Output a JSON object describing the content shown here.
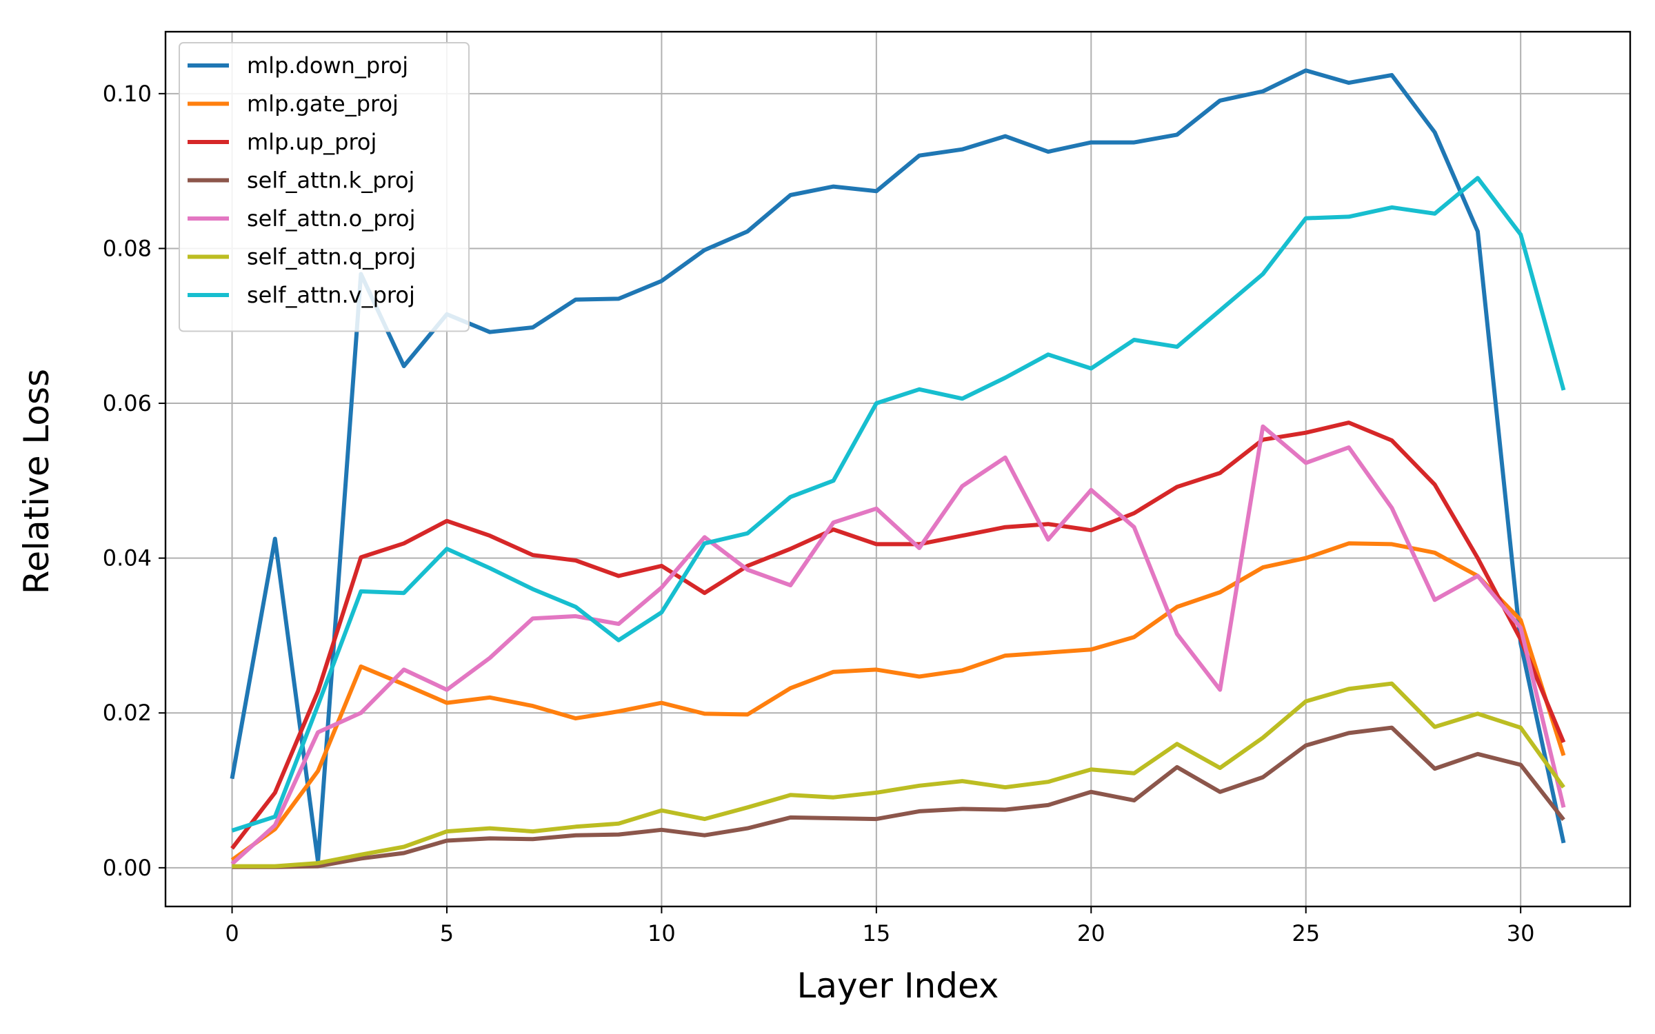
{
  "chart_data": {
    "type": "line",
    "title": "",
    "xlabel": "Layer Index",
    "ylabel": "Relative Loss",
    "xlim": [
      -1.55,
      32.55
    ],
    "ylim": [
      -0.005,
      0.108
    ],
    "xticks": [
      0,
      5,
      10,
      15,
      20,
      25,
      30
    ],
    "xtick_labels": [
      "0",
      "5",
      "10",
      "15",
      "20",
      "25",
      "30"
    ],
    "yticks": [
      0.0,
      0.02,
      0.04,
      0.06,
      0.08,
      0.1
    ],
    "ytick_labels": [
      "0.00",
      "0.02",
      "0.04",
      "0.06",
      "0.08",
      "0.10"
    ],
    "grid": true,
    "legend_position": "top-left",
    "x": [
      0,
      1,
      2,
      3,
      4,
      5,
      6,
      7,
      8,
      9,
      10,
      11,
      12,
      13,
      14,
      15,
      16,
      17,
      18,
      19,
      20,
      21,
      22,
      23,
      24,
      25,
      26,
      27,
      28,
      29,
      30,
      31
    ],
    "series": [
      {
        "name": "mlp.down_proj",
        "color": "#1f77b4",
        "values": [
          0.0115,
          0.0425,
          0.0008,
          0.0767,
          0.0648,
          0.0715,
          0.0692,
          0.0698,
          0.0734,
          0.0735,
          0.0758,
          0.0798,
          0.0822,
          0.0869,
          0.088,
          0.0874,
          0.092,
          0.0928,
          0.0945,
          0.0925,
          0.0937,
          0.0937,
          0.0947,
          0.0991,
          0.1003,
          0.103,
          0.1014,
          0.1024,
          0.095,
          0.0822,
          0.029,
          0.0032
        ]
      },
      {
        "name": "mlp.gate_proj",
        "color": "#ff7f0e",
        "values": [
          0.001,
          0.005,
          0.0125,
          0.026,
          0.0237,
          0.0213,
          0.022,
          0.0209,
          0.0193,
          0.0202,
          0.0213,
          0.0199,
          0.0198,
          0.0232,
          0.0253,
          0.0256,
          0.0247,
          0.0255,
          0.0274,
          0.0278,
          0.0282,
          0.0298,
          0.0337,
          0.0356,
          0.0388,
          0.04,
          0.0419,
          0.0418,
          0.0407,
          0.0377,
          0.032,
          0.0145
        ]
      },
      {
        "name": "mlp.up_proj",
        "color": "#d62728",
        "values": [
          0.0025,
          0.0097,
          0.0228,
          0.0401,
          0.0419,
          0.0448,
          0.0429,
          0.0404,
          0.0397,
          0.0377,
          0.039,
          0.0355,
          0.039,
          0.0412,
          0.0437,
          0.0418,
          0.0418,
          0.0429,
          0.044,
          0.0444,
          0.0436,
          0.0458,
          0.0492,
          0.051,
          0.0553,
          0.0562,
          0.0575,
          0.0552,
          0.0495,
          0.04,
          0.0295,
          0.0162
        ]
      },
      {
        "name": "self_attn.k_proj",
        "color": "#8c564b",
        "values": [
          0.0001,
          0.0001,
          0.0002,
          0.0012,
          0.0019,
          0.0035,
          0.0038,
          0.0037,
          0.0042,
          0.0043,
          0.0049,
          0.0042,
          0.0051,
          0.0065,
          0.0064,
          0.0063,
          0.0073,
          0.0076,
          0.0075,
          0.0081,
          0.0098,
          0.0087,
          0.013,
          0.0098,
          0.0117,
          0.0158,
          0.0174,
          0.0181,
          0.0128,
          0.0147,
          0.0133,
          0.0062
        ]
      },
      {
        "name": "self_attn.o_proj",
        "color": "#e377c2",
        "values": [
          0.0005,
          0.0055,
          0.0175,
          0.02,
          0.0256,
          0.023,
          0.0271,
          0.0322,
          0.0325,
          0.0315,
          0.0362,
          0.0427,
          0.0385,
          0.0365,
          0.0446,
          0.0464,
          0.0413,
          0.0493,
          0.053,
          0.0424,
          0.0488,
          0.044,
          0.0302,
          0.023,
          0.057,
          0.0523,
          0.0543,
          0.0465,
          0.0346,
          0.0377,
          0.031,
          0.0078
        ]
      },
      {
        "name": "self_attn.q_proj",
        "color": "#bcbd22",
        "values": [
          0.0002,
          0.0002,
          0.0006,
          0.0017,
          0.0027,
          0.0047,
          0.0051,
          0.0047,
          0.0053,
          0.0057,
          0.0074,
          0.0063,
          0.0078,
          0.0094,
          0.0091,
          0.0097,
          0.0106,
          0.0112,
          0.0104,
          0.0111,
          0.0127,
          0.0122,
          0.016,
          0.0129,
          0.0168,
          0.0215,
          0.0231,
          0.0238,
          0.0182,
          0.0199,
          0.0181,
          0.0104
        ]
      },
      {
        "name": "self_attn.v_proj",
        "color": "#17becf",
        "values": [
          0.0048,
          0.0066,
          0.021,
          0.0357,
          0.0355,
          0.0412,
          0.0387,
          0.036,
          0.0337,
          0.0294,
          0.033,
          0.0419,
          0.0432,
          0.0479,
          0.05,
          0.06,
          0.0618,
          0.0606,
          0.0633,
          0.0663,
          0.0645,
          0.0682,
          0.0673,
          0.072,
          0.0767,
          0.0839,
          0.0841,
          0.0853,
          0.0845,
          0.0891,
          0.0818,
          0.0617
        ]
      }
    ]
  }
}
